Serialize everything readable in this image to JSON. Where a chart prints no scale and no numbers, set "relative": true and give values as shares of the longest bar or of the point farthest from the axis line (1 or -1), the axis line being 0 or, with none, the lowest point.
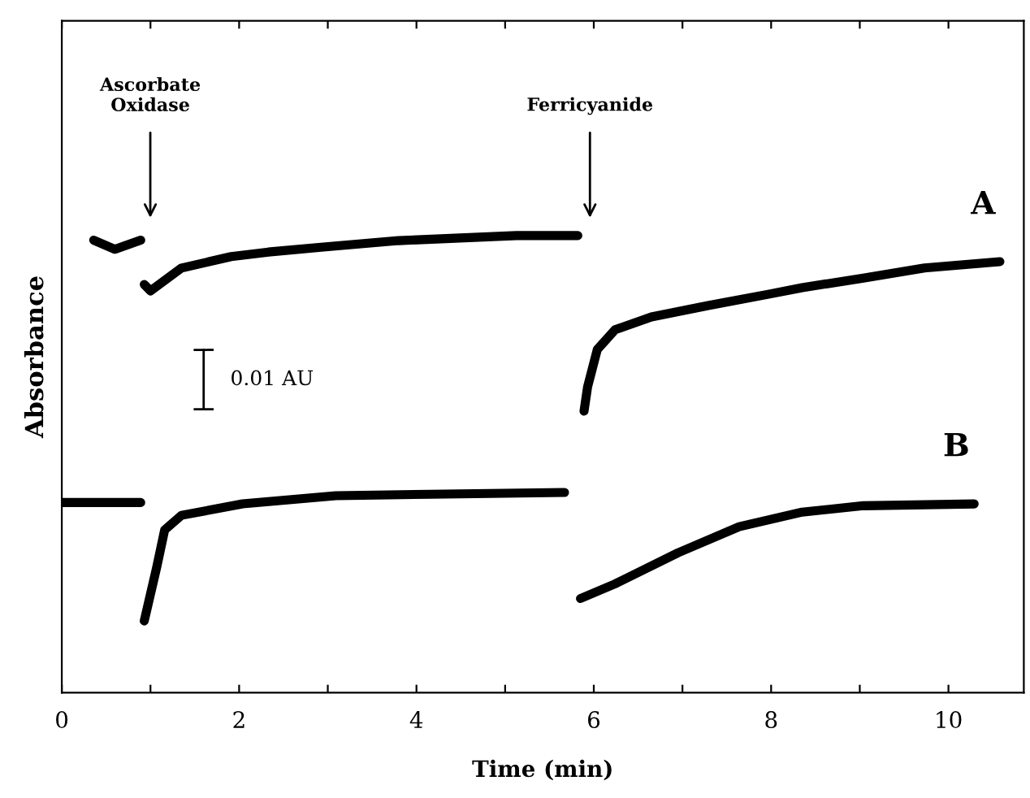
{
  "chart_data": {
    "type": "line",
    "relative": true,
    "xlabel": "Time (min)",
    "ylabel": "Absorbance",
    "xlim": [
      0,
      10.85
    ],
    "xticks": [
      0,
      {
        "value": 1,
        "label": null
      },
      2,
      {
        "value": 3,
        "label": null
      },
      4,
      {
        "value": 5,
        "label": null
      },
      6,
      {
        "value": 7,
        "label": null
      },
      8,
      {
        "value": 9,
        "label": null
      },
      10
    ],
    "marker": "none",
    "line_style": "solid",
    "legend": false,
    "grid": false,
    "series": [
      {
        "name": "A",
        "color": "#000000",
        "x": [
          0.36,
          0.6,
          0.89,
          null,
          0.93,
          1.0,
          1.35,
          1.91,
          2.33,
          2.95,
          3.8,
          5.13,
          5.82,
          null,
          5.89,
          5.93,
          6.04,
          6.24,
          6.65,
          7.29,
          7.98,
          8.35,
          9.04,
          9.73,
          10.58
        ],
        "values": [
          0.99,
          0.97,
          0.99,
          null,
          0.893,
          0.879,
          0.929,
          0.954,
          0.964,
          0.975,
          0.989,
          1.0,
          1.0,
          null,
          0.616,
          0.669,
          0.751,
          0.794,
          0.822,
          0.847,
          0.872,
          0.886,
          0.907,
          0.929,
          0.943
        ]
      },
      {
        "name": "B",
        "color": "#000000",
        "x": [
          0,
          0.89,
          null,
          0.93,
          1.07,
          1.16,
          1.35,
          2.04,
          3.09,
          4.15,
          5.67,
          null,
          5.85,
          6.24,
          6.95,
          7.64,
          8.35,
          9.04,
          10.29
        ],
        "values": [
          0.416,
          0.416,
          null,
          0.157,
          0.274,
          0.356,
          0.388,
          0.413,
          0.431,
          0.434,
          0.438,
          null,
          0.206,
          0.238,
          0.306,
          0.363,
          0.395,
          0.409,
          0.413
        ]
      }
    ],
    "annotations": [
      "Ascorbate\nOxidase",
      "Ferricyanide",
      "0.01 AU"
    ]
  }
}
